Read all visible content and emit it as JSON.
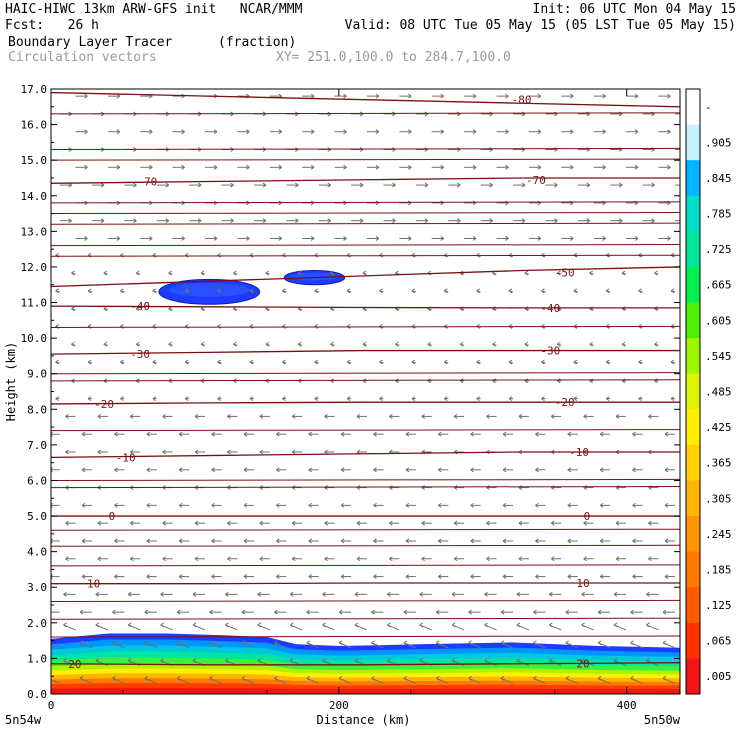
{
  "header": {
    "line1_left": "HAIC-HIWC 13km ARW-GFS init   NCAR/MMM",
    "line1_right": "Init: 06 UTC Mon 04 May 15",
    "line2_left": "Fcst:   26 h",
    "line2_right": "Valid: 08 UTC Tue 05 May 15 (05 LST Tue 05 May 15)",
    "field_name": "Boundary Layer Tracer",
    "field_units": "(fraction)",
    "overlay_name": "Circulation vectors",
    "xsec_coords": "XY= 251.0,100.0 to 284.7,100.0"
  },
  "chart_data": {
    "type": "heatmap",
    "ylabel": "Height (km)",
    "xlabel": "Distance (km)",
    "xlim": [
      0,
      437
    ],
    "ylim": [
      0,
      17
    ],
    "y_ticks": [
      "0.0",
      "1.0",
      "2.0",
      "3.0",
      "4.0",
      "5.0",
      "6.0",
      "7.0",
      "8.0",
      "9.0",
      "10.0",
      "11.0",
      "12.0",
      "13.0",
      "14.0",
      "15.0",
      "16.0",
      "17.0"
    ],
    "x_ticks": [
      {
        "value": 0,
        "label": "0"
      },
      {
        "value": 200,
        "label": "200"
      },
      {
        "value": 400,
        "label": "400"
      }
    ],
    "x_endpoints": {
      "left": "5n54w",
      "right": "5n50w"
    },
    "colorbar_labels": [
      "-",
      ".905",
      ".845",
      ".785",
      ".725",
      ".665",
      ".605",
      ".545",
      ".485",
      ".425",
      ".365",
      ".305",
      ".245",
      ".185",
      ".125",
      ".065",
      ".005"
    ],
    "colorbar_colors": [
      "#ffffff",
      "#c8f0ff",
      "#00b4ff",
      "#00dcc8",
      "#00e696",
      "#00f050",
      "#50f000",
      "#a0f500",
      "#dcf500",
      "#fff000",
      "#ffd200",
      "#ffb400",
      "#ff9600",
      "#ff7800",
      "#ff5a00",
      "#ff3200",
      "#f51414"
    ],
    "temperature_contours": [
      {
        "label": "-80",
        "y": [
          16.9,
          16.8,
          16.7,
          16.6,
          16.5
        ],
        "label_pos": [
          {
            "x": 320,
            "y": 16.7
          }
        ]
      },
      {
        "label": "-70",
        "y": [
          14.35,
          14.4,
          14.45,
          14.5,
          14.5
        ],
        "label_pos": [
          {
            "x": 60,
            "y": 14.4
          },
          {
            "x": 330,
            "y": 14.45
          }
        ]
      },
      {
        "label": "-50",
        "y": [
          11.45,
          11.6,
          11.75,
          11.9,
          12.0
        ],
        "label_pos": [
          {
            "x": 350,
            "y": 11.85
          }
        ]
      },
      {
        "label": "-40",
        "y": [
          10.9,
          10.88,
          10.86,
          10.85,
          10.85
        ],
        "label_pos": [
          {
            "x": 55,
            "y": 10.9
          },
          {
            "x": 340,
            "y": 10.85
          }
        ]
      },
      {
        "label": "-30",
        "y": [
          9.55,
          9.6,
          9.65,
          9.65,
          9.65
        ],
        "label_pos": [
          {
            "x": 55,
            "y": 9.55
          },
          {
            "x": 340,
            "y": 9.65
          }
        ]
      },
      {
        "label": "-20",
        "y": [
          8.15,
          8.18,
          8.2,
          8.2,
          8.2
        ],
        "label_pos": [
          {
            "x": 30,
            "y": 8.15
          },
          {
            "x": 350,
            "y": 8.2
          }
        ]
      },
      {
        "label": "-10",
        "y": [
          6.65,
          6.7,
          6.75,
          6.8,
          6.8
        ],
        "label_pos": [
          {
            "x": 45,
            "y": 6.65
          },
          {
            "x": 360,
            "y": 6.8
          }
        ]
      },
      {
        "label": "0",
        "y": [
          5.0,
          5.0,
          5.0,
          5.0,
          5.0
        ],
        "label_pos": [
          {
            "x": 40,
            "y": 5.0
          },
          {
            "x": 370,
            "y": 5.0
          }
        ]
      },
      {
        "label": "10",
        "y": [
          3.1,
          3.1,
          3.12,
          3.12,
          3.12
        ],
        "label_pos": [
          {
            "x": 25,
            "y": 3.1
          },
          {
            "x": 365,
            "y": 3.12
          }
        ]
      },
      {
        "label": "20",
        "y": [
          0.85,
          0.82,
          0.82,
          0.85,
          0.88
        ],
        "label_pos": [
          {
            "x": 12,
            "y": 0.85
          },
          {
            "x": 365,
            "y": 0.86
          }
        ]
      }
    ],
    "unlabeled_isotherm_heights": [
      16.3,
      15.3,
      15.0,
      13.8,
      13.5,
      13.2,
      12.6,
      12.3,
      10.3,
      9.0,
      8.8,
      7.4,
      6.0,
      5.8,
      4.6,
      4.15,
      3.6,
      2.6,
      2.1,
      1.6
    ],
    "tracer_x": [
      0,
      40,
      80,
      120,
      150,
      170,
      200,
      260,
      320,
      380,
      437
    ],
    "tracer_top_km": [
      1.55,
      1.7,
      1.7,
      1.65,
      1.6,
      1.4,
      1.35,
      1.4,
      1.45,
      1.35,
      1.3
    ],
    "cloud_blobs": [
      {
        "x_center": 110,
        "y_center": 11.3,
        "x_half": 35,
        "y_half": 0.35
      },
      {
        "x_center": 183,
        "y_center": 11.7,
        "x_half": 21,
        "y_half": 0.2
      }
    ]
  }
}
